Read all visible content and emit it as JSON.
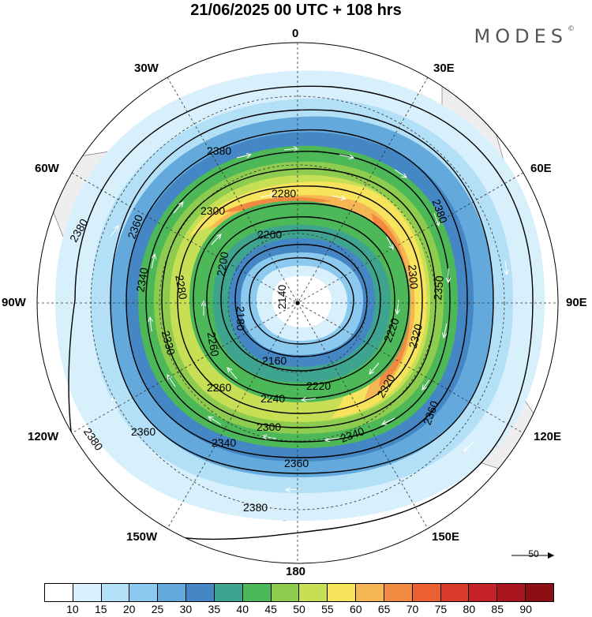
{
  "header": {
    "title": "21/06/2025  00 UTC  + 108 hrs"
  },
  "logo": {
    "text": "MODES",
    "mark": "©"
  },
  "longitude_labels": {
    "n0": "0",
    "n30e": "30E",
    "n60e": "60E",
    "n90e": "90E",
    "n120e": "120E",
    "n150e": "150E",
    "n180": "180",
    "n150w": "150W",
    "n120w": "120W",
    "n90w": "90W",
    "n60w": "60W",
    "n30w": "30W"
  },
  "contour_labels": [
    "2380",
    "2360",
    "2340",
    "2330",
    "2300",
    "2280",
    "2260",
    "2200",
    "2180",
    "2160",
    "2140",
    "2220",
    "2240",
    "2320",
    "2350"
  ],
  "reference_vector": {
    "label": "50"
  },
  "colorbar": {
    "colors": [
      "#ffffff",
      "#d8f0fb",
      "#b4e0f7",
      "#8bc9ee",
      "#63a9dc",
      "#4487c4",
      "#3fa48f",
      "#4cb858",
      "#8dcc4e",
      "#c6df54",
      "#f8e45c",
      "#f5b653",
      "#f08a40",
      "#ea6030",
      "#d93a2a",
      "#c42228",
      "#a9151f",
      "#8b0f14"
    ],
    "ticks": [
      "10",
      "15",
      "20",
      "25",
      "30",
      "35",
      "40",
      "45",
      "50",
      "55",
      "60",
      "65",
      "70",
      "75",
      "80",
      "85",
      "90"
    ]
  }
}
